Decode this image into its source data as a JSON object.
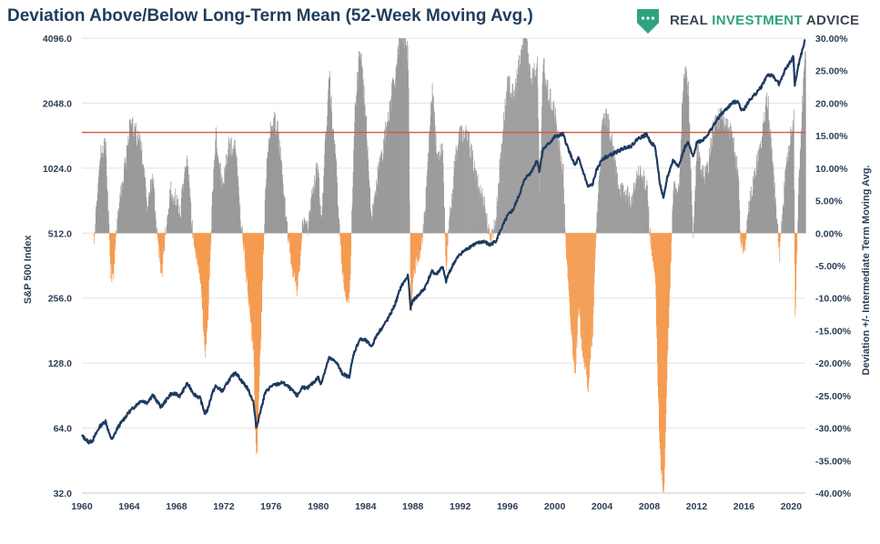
{
  "title": "Deviation Above/Below Long-Term Mean (52-Week Moving Avg.)",
  "brand": {
    "name_a": "REAL",
    "name_b": "INVESTMENT",
    "name_c": "ADVICE",
    "dark_color": "#3d4650",
    "accent_color": "#2fa37f"
  },
  "chart_data": {
    "type": "line+bar",
    "left_axis": {
      "label": "S&P 500 Index",
      "scale": "log2",
      "ticks": [
        "32.0",
        "64.0",
        "128.0",
        "256.0",
        "512.0",
        "1024.0",
        "2048.0",
        "4096.0"
      ],
      "range": [
        32,
        4096
      ]
    },
    "right_axis": {
      "label": "Deviation +/- Intermediate Term Moving Avg.",
      "ticks": [
        "-40.00%",
        "-35.00%",
        "-30.00%",
        "-25.00%",
        "-20.00%",
        "-15.00%",
        "-10.00%",
        "-5.00%",
        "0.00%",
        "5.00%",
        "10.00%",
        "15.00%",
        "20.00%",
        "25.00%",
        "30.00%"
      ],
      "range": [
        -40,
        30
      ]
    },
    "x_axis": {
      "ticks": [
        "1960",
        "1964",
        "1968",
        "1972",
        "1976",
        "1980",
        "1984",
        "1988",
        "1992",
        "1996",
        "2000",
        "2004",
        "2008",
        "2012",
        "2016",
        "2020"
      ],
      "range": [
        1960,
        2021.2
      ]
    },
    "reference_line": {
      "value": 15.5,
      "color": "#d9543a"
    },
    "colors": {
      "positive": "#9a9a9a",
      "negative": "#f59b50",
      "index_line": "#1f3a5f"
    },
    "sp500_series": {
      "x": [
        1960.0,
        1960.6,
        1960.9,
        1961.5,
        1962.0,
        1962.4,
        1962.6,
        1963.0,
        1963.5,
        1964.0,
        1965.0,
        1965.5,
        1966.0,
        1966.7,
        1967.5,
        1968.0,
        1968.3,
        1968.9,
        1969.5,
        1970.0,
        1970.4,
        1970.6,
        1971.0,
        1971.3,
        1971.9,
        1972.5,
        1973.0,
        1973.5,
        1974.0,
        1974.5,
        1974.75,
        1975.0,
        1975.5,
        1976.0,
        1976.5,
        1977.0,
        1977.5,
        1978.0,
        1978.2,
        1978.7,
        1979.0,
        1979.5,
        1980.0,
        1980.2,
        1980.9,
        1981.5,
        1982.0,
        1982.6,
        1983.0,
        1983.5,
        1984.0,
        1984.5,
        1985.0,
        1985.5,
        1986.0,
        1986.5,
        1987.0,
        1987.6,
        1987.8,
        1988.0,
        1988.5,
        1989.0,
        1989.6,
        1990.0,
        1990.5,
        1990.8,
        1991.0,
        1991.5,
        1992.0,
        1993.0,
        1994.0,
        1994.5,
        1995.0,
        1995.5,
        1996.0,
        1996.5,
        1997.0,
        1997.5,
        1998.0,
        1998.5,
        1998.7,
        1999.0,
        1999.5,
        2000.0,
        2000.7,
        2001.0,
        2001.7,
        2002.0,
        2002.5,
        2002.8,
        2003.2,
        2003.5,
        2004.0,
        2005.0,
        2006.0,
        2006.5,
        2007.0,
        2007.8,
        2008.0,
        2008.5,
        2008.9,
        2009.2,
        2009.5,
        2010.0,
        2010.5,
        2011.0,
        2011.3,
        2011.7,
        2012.0,
        2012.5,
        2013.0,
        2013.5,
        2014.0,
        2015.0,
        2015.5,
        2015.7,
        2016.0,
        2016.5,
        2017.0,
        2017.5,
        2018.0,
        2018.5,
        2018.9,
        2019.0,
        2019.5,
        2020.0,
        2020.2,
        2020.3,
        2020.6,
        2021.0,
        2021.2
      ],
      "values": [
        59,
        55,
        56,
        65,
        69,
        58,
        57,
        64,
        70,
        76,
        86,
        84,
        91,
        80,
        92,
        92,
        90,
        103,
        92,
        88,
        75,
        77,
        92,
        100,
        95,
        108,
        116,
        106,
        98,
        85,
        64,
        73,
        93,
        100,
        102,
        104,
        99,
        93,
        90,
        100,
        97,
        103,
        110,
        102,
        135,
        130,
        115,
        110,
        142,
        165,
        163,
        153,
        175,
        190,
        210,
        240,
        290,
        325,
        230,
        250,
        265,
        285,
        340,
        330,
        360,
        305,
        330,
        375,
        410,
        450,
        470,
        450,
        470,
        540,
        615,
        660,
        770,
        920,
        980,
        1120,
        990,
        1250,
        1330,
        1430,
        1470,
        1320,
        1050,
        1140,
        950,
        840,
        860,
        990,
        1130,
        1200,
        1280,
        1300,
        1400,
        1470,
        1380,
        1280,
        870,
        735,
        920,
        1110,
        1050,
        1280,
        1340,
        1150,
        1350,
        1380,
        1480,
        1640,
        1800,
        2050,
        2100,
        1930,
        1920,
        2120,
        2270,
        2450,
        2780,
        2720,
        2550,
        2500,
        2930,
        3230,
        3380,
        2450,
        3050,
        3700,
        4050
      ]
    }
  }
}
